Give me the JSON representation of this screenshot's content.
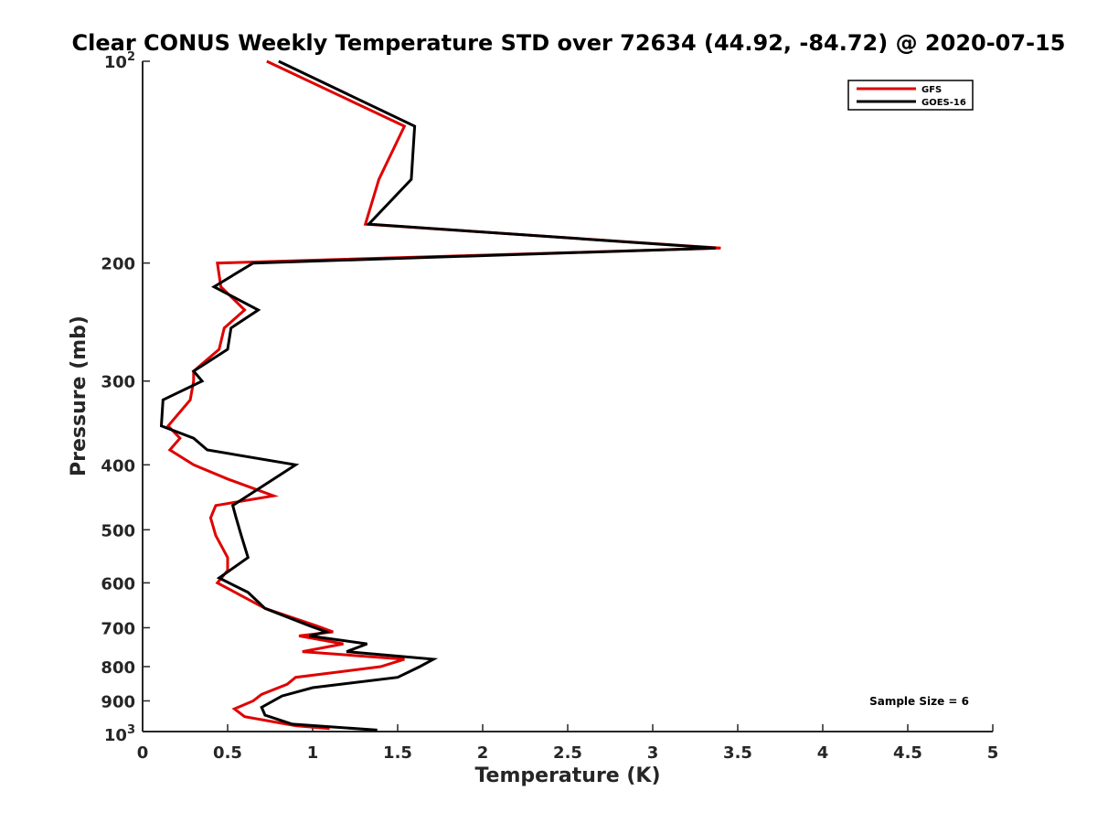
{
  "chart_data": {
    "type": "line",
    "title": "Clear CONUS Weekly Temperature STD over 72634 (44.92, -84.72) @ 2020-07-15",
    "xlabel": "Temperature (K)",
    "ylabel": "Pressure (mb)",
    "xlim": [
      0,
      5
    ],
    "ylim": [
      100,
      1000
    ],
    "yscale": "log",
    "yreversed": true,
    "x_ticks": [
      0,
      0.5,
      1,
      1.5,
      2,
      2.5,
      3,
      3.5,
      4,
      4.5,
      5
    ],
    "x_tick_labels": [
      "0",
      "0.5",
      "1",
      "1.5",
      "2",
      "2.5",
      "3",
      "3.5",
      "4",
      "4.5",
      "5"
    ],
    "y_ticks": [
      200,
      300,
      400,
      500,
      600,
      700,
      800,
      900
    ],
    "y_tick_labels": [
      "200",
      "300",
      "400",
      "500",
      "600",
      "700",
      "800",
      "900"
    ],
    "y_top_label": {
      "base": "10",
      "exp": "2"
    },
    "y_bottom_label": {
      "base": "10",
      "exp": "3"
    },
    "grid": false,
    "legend_position": "top-right",
    "annotation": "Sample Size = 6",
    "series": [
      {
        "name": "GFS",
        "color": "#e00000",
        "points": [
          [
            0.73,
            100
          ],
          [
            1.54,
            125
          ],
          [
            1.39,
            150
          ],
          [
            1.31,
            175
          ],
          [
            3.4,
            190
          ],
          [
            0.44,
            200
          ],
          [
            0.46,
            217
          ],
          [
            0.6,
            235
          ],
          [
            0.48,
            250
          ],
          [
            0.45,
            269
          ],
          [
            0.3,
            290
          ],
          [
            0.3,
            300
          ],
          [
            0.28,
            320
          ],
          [
            0.15,
            350
          ],
          [
            0.22,
            365
          ],
          [
            0.16,
            380
          ],
          [
            0.3,
            400
          ],
          [
            0.5,
            420
          ],
          [
            0.77,
            445
          ],
          [
            0.43,
            460
          ],
          [
            0.4,
            480
          ],
          [
            0.43,
            510
          ],
          [
            0.5,
            550
          ],
          [
            0.5,
            575
          ],
          [
            0.44,
            600
          ],
          [
            0.72,
            655
          ],
          [
            1.02,
            695
          ],
          [
            1.12,
            710
          ],
          [
            0.92,
            720
          ],
          [
            1.18,
            740
          ],
          [
            0.94,
            760
          ],
          [
            1.54,
            780
          ],
          [
            1.4,
            800
          ],
          [
            0.9,
            830
          ],
          [
            0.85,
            850
          ],
          [
            0.7,
            880
          ],
          [
            0.65,
            900
          ],
          [
            0.54,
            925
          ],
          [
            0.6,
            950
          ],
          [
            0.9,
            980
          ],
          [
            1.1,
            990
          ]
        ]
      },
      {
        "name": "GOES-16",
        "color": "#000000",
        "points": [
          [
            0.8,
            100
          ],
          [
            1.6,
            125
          ],
          [
            1.58,
            150
          ],
          [
            1.33,
            175
          ],
          [
            3.37,
            190
          ],
          [
            0.65,
            200
          ],
          [
            0.42,
            217
          ],
          [
            0.68,
            235
          ],
          [
            0.52,
            250
          ],
          [
            0.5,
            269
          ],
          [
            0.3,
            290
          ],
          [
            0.35,
            300
          ],
          [
            0.12,
            320
          ],
          [
            0.11,
            350
          ],
          [
            0.3,
            365
          ],
          [
            0.38,
            380
          ],
          [
            0.9,
            400
          ],
          [
            0.53,
            460
          ],
          [
            0.55,
            480
          ],
          [
            0.58,
            510
          ],
          [
            0.62,
            550
          ],
          [
            0.45,
            590
          ],
          [
            0.62,
            620
          ],
          [
            0.72,
            655
          ],
          [
            0.98,
            695
          ],
          [
            1.08,
            710
          ],
          [
            0.98,
            720
          ],
          [
            1.32,
            740
          ],
          [
            1.2,
            760
          ],
          [
            1.71,
            780
          ],
          [
            1.63,
            800
          ],
          [
            1.5,
            830
          ],
          [
            1.0,
            860
          ],
          [
            0.82,
            885
          ],
          [
            0.7,
            920
          ],
          [
            0.72,
            945
          ],
          [
            0.88,
            975
          ],
          [
            1.38,
            995
          ]
        ]
      }
    ]
  }
}
